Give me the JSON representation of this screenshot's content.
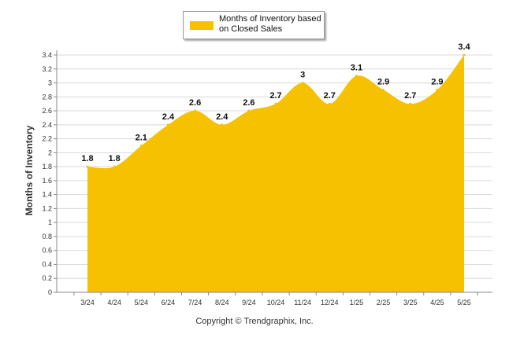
{
  "legend": {
    "line1": "Months of Inventory based",
    "line2": "on Closed Sales"
  },
  "footer": {
    "copyright": "Copyright © Trendgraphix, Inc."
  },
  "colors": {
    "fill": "#F6C100",
    "grid": "#d9d9d9",
    "axis": "#888888"
  },
  "chart_data": {
    "type": "area",
    "title": "",
    "xlabel": "",
    "ylabel": "Months of Inventory",
    "categories": [
      "3/24",
      "4/24",
      "5/24",
      "6/24",
      "7/24",
      "8/24",
      "9/24",
      "10/24",
      "11/24",
      "12/24",
      "1/25",
      "2/25",
      "3/25",
      "4/25",
      "5/25"
    ],
    "series": [
      {
        "name": "Months of Inventory based on Closed Sales",
        "values": [
          1.8,
          1.8,
          2.1,
          2.4,
          2.6,
          2.4,
          2.6,
          2.7,
          3,
          2.7,
          3.1,
          2.9,
          2.7,
          2.9,
          3.4
        ],
        "labels": [
          "1.8",
          "1.8",
          "2.1",
          "2.4",
          "2.6",
          "2.4",
          "2.6",
          "2.7",
          "3",
          "2.7",
          "3.1",
          "2.9",
          "2.7",
          "2.9",
          "3.4"
        ]
      }
    ],
    "ylim": [
      0,
      3.4
    ],
    "yticks": [
      "0",
      "0.2",
      "0.4",
      "0.6",
      "0.8",
      "1",
      "1.2",
      "1.4",
      "1.6",
      "1.8",
      "2",
      "2.2",
      "2.4",
      "2.6",
      "2.8",
      "3",
      "3.2",
      "3.4"
    ],
    "grid": true,
    "legend_position": "top-center"
  }
}
